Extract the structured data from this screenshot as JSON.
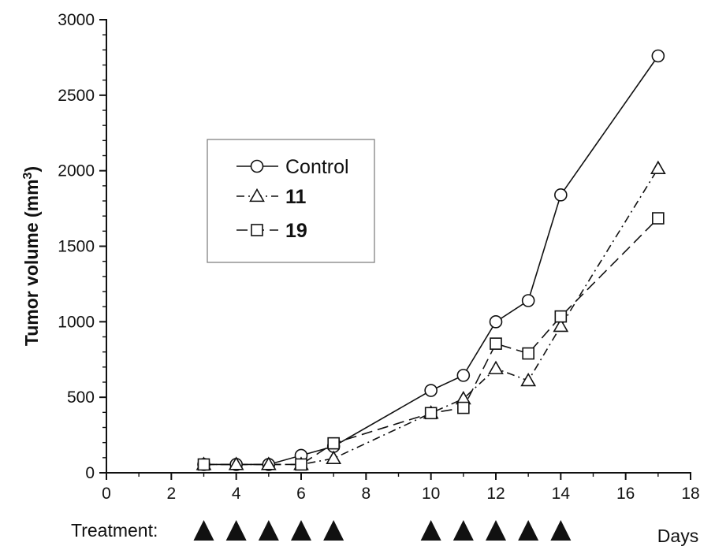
{
  "chart_data": {
    "type": "line",
    "title": "",
    "ylabel": "Tumor volume (mm",
    "ylabel_superscript": "3",
    "ylabel_suffix": ")",
    "xlabel": "Days",
    "xlim": [
      0,
      18
    ],
    "ylim": [
      0,
      3000
    ],
    "x_ticks": [
      0,
      2,
      4,
      6,
      8,
      10,
      12,
      14,
      16,
      18
    ],
    "y_ticks": [
      0,
      500,
      1000,
      1500,
      2000,
      2500,
      3000
    ],
    "grid": false,
    "legend_position": "upper-left",
    "series": [
      {
        "name": "Control",
        "marker": "circle",
        "line_style": "solid",
        "bold_label": false,
        "x": [
          3,
          4,
          5,
          6,
          7,
          10,
          11,
          12,
          13,
          14,
          17
        ],
        "y": [
          55,
          55,
          55,
          115,
          175,
          545,
          645,
          1000,
          1140,
          1840,
          2760
        ]
      },
      {
        "name": "11",
        "marker": "triangle",
        "line_style": "dash-dot",
        "bold_label": true,
        "x": [
          3,
          4,
          5,
          6,
          7,
          10,
          11,
          12,
          13,
          14,
          17
        ],
        "y": [
          55,
          55,
          55,
          55,
          95,
          395,
          490,
          690,
          610,
          970,
          2015
        ]
      },
      {
        "name": "19",
        "marker": "square",
        "line_style": "dashed",
        "bold_label": true,
        "x": [
          3,
          6,
          7,
          10,
          11,
          12,
          13,
          14,
          17
        ],
        "y": [
          55,
          55,
          195,
          395,
          430,
          855,
          790,
          1035,
          1685
        ]
      }
    ],
    "treatment": {
      "label": "Treatment:",
      "days": [
        3,
        4,
        5,
        6,
        7,
        10,
        11,
        12,
        13,
        14
      ],
      "marker": "filled-triangle"
    }
  },
  "colors": {
    "ink": "#111111",
    "background": "#ffffff",
    "legend_border": "#777777"
  }
}
